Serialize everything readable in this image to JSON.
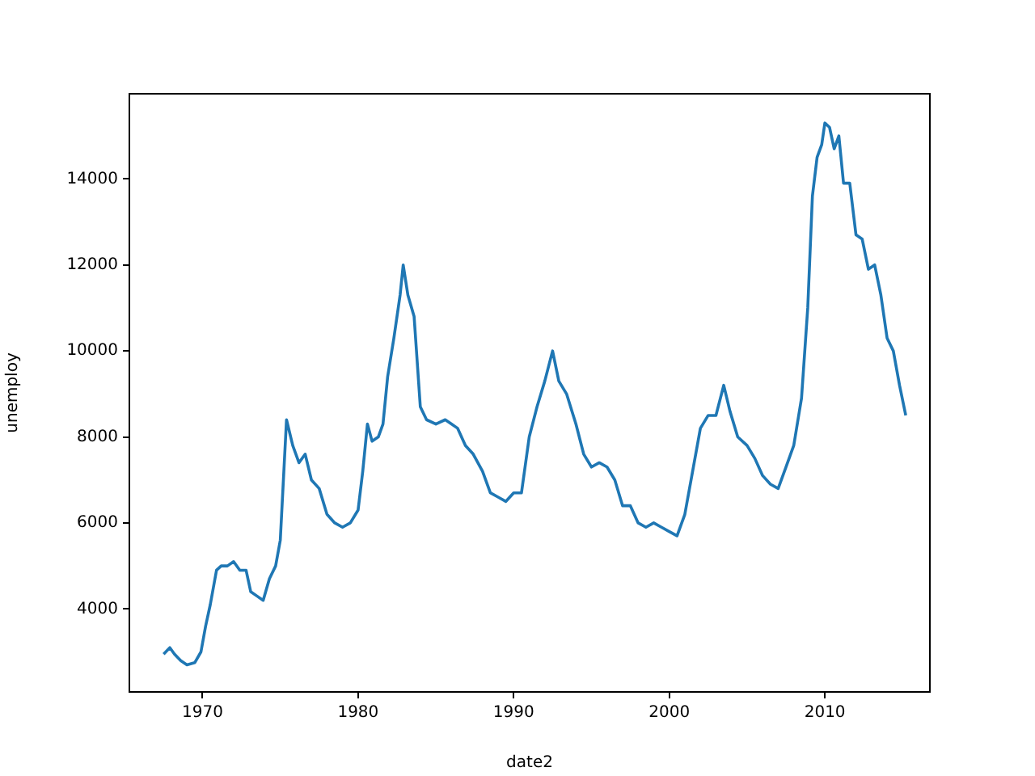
{
  "chart_data": {
    "type": "line",
    "xlabel": "date2",
    "ylabel": "unemploy",
    "x": [
      1967.5,
      1967.9,
      1968.2,
      1968.6,
      1969.0,
      1969.5,
      1969.9,
      1970.2,
      1970.5,
      1970.9,
      1971.2,
      1971.6,
      1972.0,
      1972.4,
      1972.8,
      1973.1,
      1973.5,
      1973.9,
      1974.3,
      1974.7,
      1975.0,
      1975.4,
      1975.8,
      1976.2,
      1976.6,
      1977.0,
      1977.5,
      1978.0,
      1978.5,
      1979.0,
      1979.5,
      1980.0,
      1980.3,
      1980.6,
      1980.9,
      1981.3,
      1981.6,
      1981.9,
      1982.3,
      1982.7,
      1982.9,
      1983.2,
      1983.6,
      1984.0,
      1984.4,
      1985.0,
      1985.6,
      1986.0,
      1986.4,
      1986.9,
      1987.4,
      1988.0,
      1988.5,
      1989.0,
      1989.5,
      1990.0,
      1990.5,
      1991.0,
      1991.5,
      1992.0,
      1992.5,
      1992.9,
      1993.4,
      1994.0,
      1994.5,
      1995.0,
      1995.5,
      1996.0,
      1996.5,
      1997.0,
      1997.5,
      1998.0,
      1998.5,
      1999.0,
      1999.5,
      2000.0,
      2000.5,
      2001.0,
      2001.5,
      2002.0,
      2002.5,
      2003.0,
      2003.5,
      2003.9,
      2004.4,
      2005.0,
      2005.5,
      2006.0,
      2006.5,
      2007.0,
      2007.5,
      2008.0,
      2008.5,
      2008.9,
      2009.2,
      2009.5,
      2009.8,
      2010.0,
      2010.3,
      2010.6,
      2010.9,
      2011.2,
      2011.6,
      2012.0,
      2012.4,
      2012.8,
      2013.2,
      2013.6,
      2014.0,
      2014.4,
      2014.8,
      2015.2
    ],
    "values": [
      2950,
      3100,
      2950,
      2800,
      2700,
      2750,
      3000,
      3600,
      4100,
      4900,
      5000,
      5000,
      5100,
      4900,
      4900,
      4400,
      4300,
      4200,
      4700,
      5000,
      5600,
      8400,
      7800,
      7400,
      7600,
      7000,
      6800,
      6200,
      6000,
      5900,
      6000,
      6300,
      7200,
      8300,
      7900,
      8000,
      8300,
      9400,
      10300,
      11300,
      12000,
      11300,
      10800,
      8700,
      8400,
      8300,
      8400,
      8300,
      8200,
      7800,
      7600,
      7200,
      6700,
      6600,
      6500,
      6700,
      6700,
      8000,
      8700,
      9300,
      10000,
      9300,
      9000,
      8300,
      7600,
      7300,
      7400,
      7300,
      7000,
      6400,
      6400,
      6000,
      5900,
      6000,
      5900,
      5800,
      5700,
      6200,
      7200,
      8200,
      8500,
      8500,
      9200,
      8600,
      8000,
      7800,
      7500,
      7100,
      6900,
      6800,
      7300,
      7800,
      8900,
      11000,
      13600,
      14500,
      14800,
      15300,
      15200,
      14700,
      15000,
      13900,
      13900,
      12700,
      12600,
      11900,
      12000,
      11300,
      10300,
      10000,
      9200,
      8500
    ],
    "color": "#1f77b4",
    "xlim": [
      1965.3,
      2016.75
    ],
    "xticks": [
      1970,
      1980,
      1990,
      2000,
      2010
    ],
    "ylim": [
      2070,
      15980
    ],
    "yticks": [
      4000,
      6000,
      8000,
      10000,
      12000,
      14000
    ],
    "grid": false,
    "legend": false
  }
}
